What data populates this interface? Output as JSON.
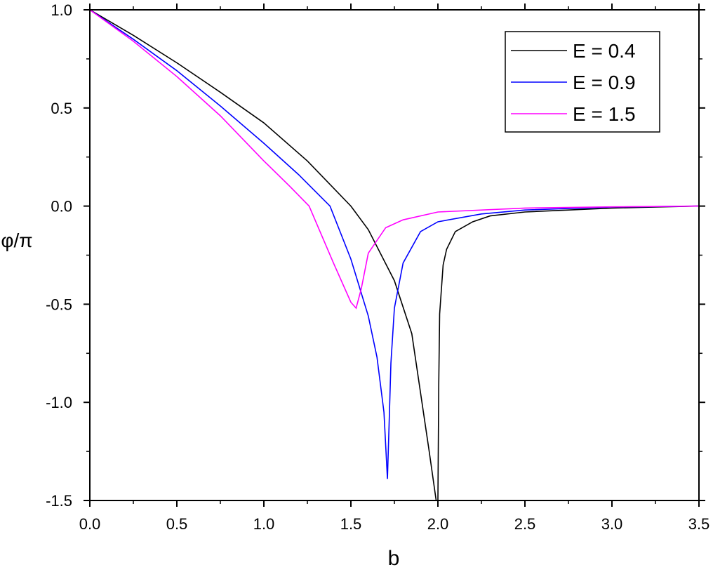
{
  "chart_data": {
    "type": "line",
    "xlabel": "b",
    "ylabel": "φ/π",
    "xlim": [
      0,
      3.5
    ],
    "ylim": [
      -1.5,
      1.0
    ],
    "xticks": [
      {
        "value": 0,
        "label": "0.0"
      },
      0.5,
      {
        "value": 1,
        "label": "1.0"
      },
      1.5,
      {
        "value": 2,
        "label": "2.0"
      },
      2.5,
      {
        "value": 3,
        "label": "3.0"
      },
      3.5
    ],
    "yticks": [
      {
        "value": 1,
        "label": "1.0"
      },
      0.5,
      {
        "value": 0,
        "label": "0.0"
      },
      -0.5,
      {
        "value": -1,
        "label": "-1.0"
      },
      -1.5
    ],
    "legend": "upper right",
    "series": [
      {
        "name": "E = 0.4",
        "color": "#000000",
        "x": [
          0,
          0.25,
          0.5,
          0.75,
          1.0,
          1.25,
          1.5,
          1.6,
          1.75,
          1.85,
          1.9,
          1.95,
          1.99,
          2.0,
          2.005,
          2.01,
          2.03,
          2.05,
          2.1,
          2.2,
          2.3,
          2.5,
          2.75,
          3.0,
          3.25,
          3.5
        ],
        "values": [
          1.0,
          0.87,
          0.73,
          0.58,
          0.424,
          0.23,
          0.0,
          -0.12,
          -0.38,
          -0.65,
          -0.95,
          -1.25,
          -1.5,
          -1.5,
          -0.9,
          -0.55,
          -0.3,
          -0.22,
          -0.13,
          -0.08,
          -0.05,
          -0.03,
          -0.02,
          -0.01,
          -0.005,
          0.0
        ]
      },
      {
        "name": "E = 0.9",
        "color": "#0000ff",
        "x": [
          0,
          0.25,
          0.5,
          0.75,
          1.0,
          1.2,
          1.38,
          1.5,
          1.6,
          1.65,
          1.69,
          1.71,
          1.72,
          1.73,
          1.75,
          1.8,
          1.9,
          2.0,
          2.25,
          2.5,
          3.0,
          3.5
        ],
        "values": [
          1.0,
          0.85,
          0.69,
          0.51,
          0.32,
          0.16,
          0.0,
          -0.27,
          -0.56,
          -0.77,
          -1.05,
          -1.39,
          -1.1,
          -0.8,
          -0.52,
          -0.29,
          -0.13,
          -0.08,
          -0.04,
          -0.02,
          -0.005,
          0.0
        ]
      },
      {
        "name": "E = 1.5",
        "color": "#ff00ff",
        "x": [
          0,
          0.25,
          0.5,
          0.75,
          1.0,
          1.15,
          1.26,
          1.4,
          1.5,
          1.53,
          1.56,
          1.6,
          1.7,
          1.8,
          2.0,
          2.5,
          3.0,
          3.5
        ],
        "values": [
          1.0,
          0.84,
          0.66,
          0.46,
          0.23,
          0.1,
          0.0,
          -0.29,
          -0.49,
          -0.52,
          -0.42,
          -0.24,
          -0.11,
          -0.07,
          -0.03,
          -0.01,
          -0.004,
          0.0
        ]
      }
    ]
  }
}
